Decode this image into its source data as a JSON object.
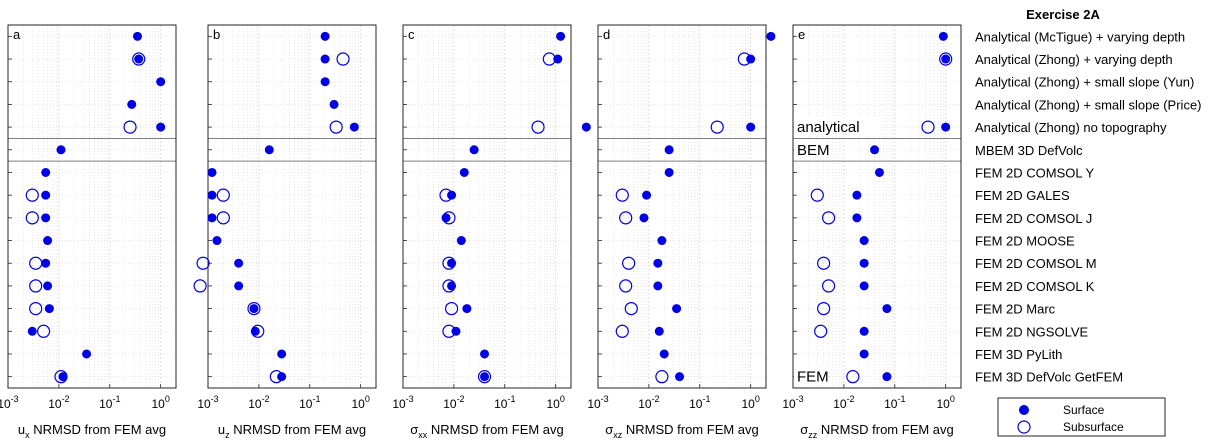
{
  "chart_data": {
    "type": "scatter",
    "title": "Exercise 2A",
    "xscale": "log",
    "xlim": [
      0.001,
      2
    ],
    "xticks": [
      {
        "value": 0.001,
        "base": "10",
        "exp": "-3"
      },
      {
        "value": 0.01,
        "base": "10",
        "exp": "-2"
      },
      {
        "value": 0.1,
        "base": "10",
        "exp": "-1"
      },
      {
        "value": 1,
        "base": "10",
        "exp": "0"
      }
    ],
    "grid": true,
    "legend_position": "bottom-right",
    "colors": {
      "marker": "#0000e6",
      "axis": "#262626",
      "grid": "#d9d9d9",
      "separator": "#7f7f7f"
    },
    "rows": [
      "Analytical (McTigue) + varying depth",
      "Analytical (Zhong) + varying depth",
      "Analytical (Zhong) + small slope (Yun)",
      "Analytical (Zhong) + small slope (Price)",
      "Analytical (Zhong) no topography",
      "MBEM 3D DefVolc",
      "FEM 2D COMSOL Y",
      "FEM 2D GALES",
      "FEM 2D COMSOL J",
      "FEM 2D MOOSE",
      "FEM 2D COMSOL M",
      "FEM 2D COMSOL K",
      "FEM 2D Marc",
      "FEM 2D NGSOLVE",
      "FEM 3D PyLith",
      "FEM 3D DefVolc GetFEM"
    ],
    "group_labels": [
      {
        "label": "analytical",
        "row": 4
      },
      {
        "label": "BEM",
        "row": 5
      },
      {
        "label": "FEM",
        "row": 15
      }
    ],
    "series": [
      {
        "name": "Surface",
        "marker": "filled"
      },
      {
        "name": "Subsurface",
        "marker": "open"
      }
    ],
    "panels": [
      {
        "letter": "a",
        "xlabel_sym": "u",
        "xlabel_sub": "x",
        "xlabel_rest": " NRMSD from FEM avg",
        "surface": [
          0.35,
          0.37,
          1.0,
          0.27,
          1.0,
          0.011,
          0.0055,
          0.0055,
          0.0055,
          0.006,
          0.0055,
          0.006,
          0.0065,
          0.003,
          0.035,
          0.012
        ],
        "subsurface": [
          null,
          0.37,
          null,
          null,
          0.25,
          null,
          null,
          0.003,
          0.003,
          null,
          0.0035,
          0.0035,
          0.0035,
          0.005,
          null,
          0.011
        ]
      },
      {
        "letter": "b",
        "xlabel_sym": "u",
        "xlabel_sub": "z",
        "xlabel_rest": " NRMSD from FEM avg",
        "surface": [
          0.2,
          0.2,
          0.2,
          0.3,
          0.75,
          0.016,
          0.0012,
          0.0012,
          0.0012,
          0.0015,
          0.004,
          0.004,
          0.008,
          0.0085,
          0.028,
          0.028
        ],
        "subsurface": [
          null,
          0.45,
          null,
          null,
          0.33,
          null,
          null,
          0.002,
          0.002,
          null,
          0.0008,
          0.0007,
          0.008,
          0.0095,
          null,
          0.022
        ]
      },
      {
        "letter": "c",
        "xlabel_sym": "σ",
        "xlabel_sub": "xx",
        "xlabel_rest": " NRMSD from FEM avg",
        "surface": [
          1.25,
          1.1,
          null,
          null,
          4.0,
          0.025,
          0.016,
          0.009,
          0.007,
          0.014,
          0.009,
          0.009,
          0.018,
          0.011,
          0.04,
          0.04
        ],
        "subsurface": [
          null,
          0.75,
          null,
          null,
          0.45,
          null,
          null,
          0.007,
          0.008,
          null,
          0.008,
          0.008,
          0.009,
          0.008,
          null,
          0.04
        ]
      },
      {
        "letter": "d",
        "xlabel_sym": "σ",
        "xlabel_sub": "xz",
        "xlabel_rest": " NRMSD from FEM avg",
        "surface": [
          2.5,
          1.0,
          null,
          null,
          1.0,
          0.025,
          0.025,
          0.009,
          0.008,
          0.018,
          0.015,
          0.015,
          0.035,
          0.016,
          0.02,
          0.04
        ],
        "subsurface": [
          null,
          0.75,
          null,
          null,
          0.22,
          null,
          null,
          0.003,
          0.0035,
          null,
          0.004,
          0.0035,
          0.0045,
          0.003,
          null,
          0.018
        ]
      },
      {
        "letter": "e",
        "xlabel_sym": "σ",
        "xlabel_sub": "zz",
        "xlabel_rest": " NRMSD from FEM avg",
        "surface": [
          0.9,
          1.0,
          null,
          null,
          1.0,
          0.04,
          0.05,
          0.018,
          0.018,
          0.025,
          0.025,
          0.025,
          0.07,
          0.025,
          0.025,
          0.07
        ],
        "subsurface": [
          null,
          1.0,
          null,
          null,
          0.45,
          null,
          null,
          0.003,
          0.005,
          null,
          0.004,
          0.005,
          0.004,
          0.0035,
          null,
          0.015
        ]
      }
    ]
  }
}
